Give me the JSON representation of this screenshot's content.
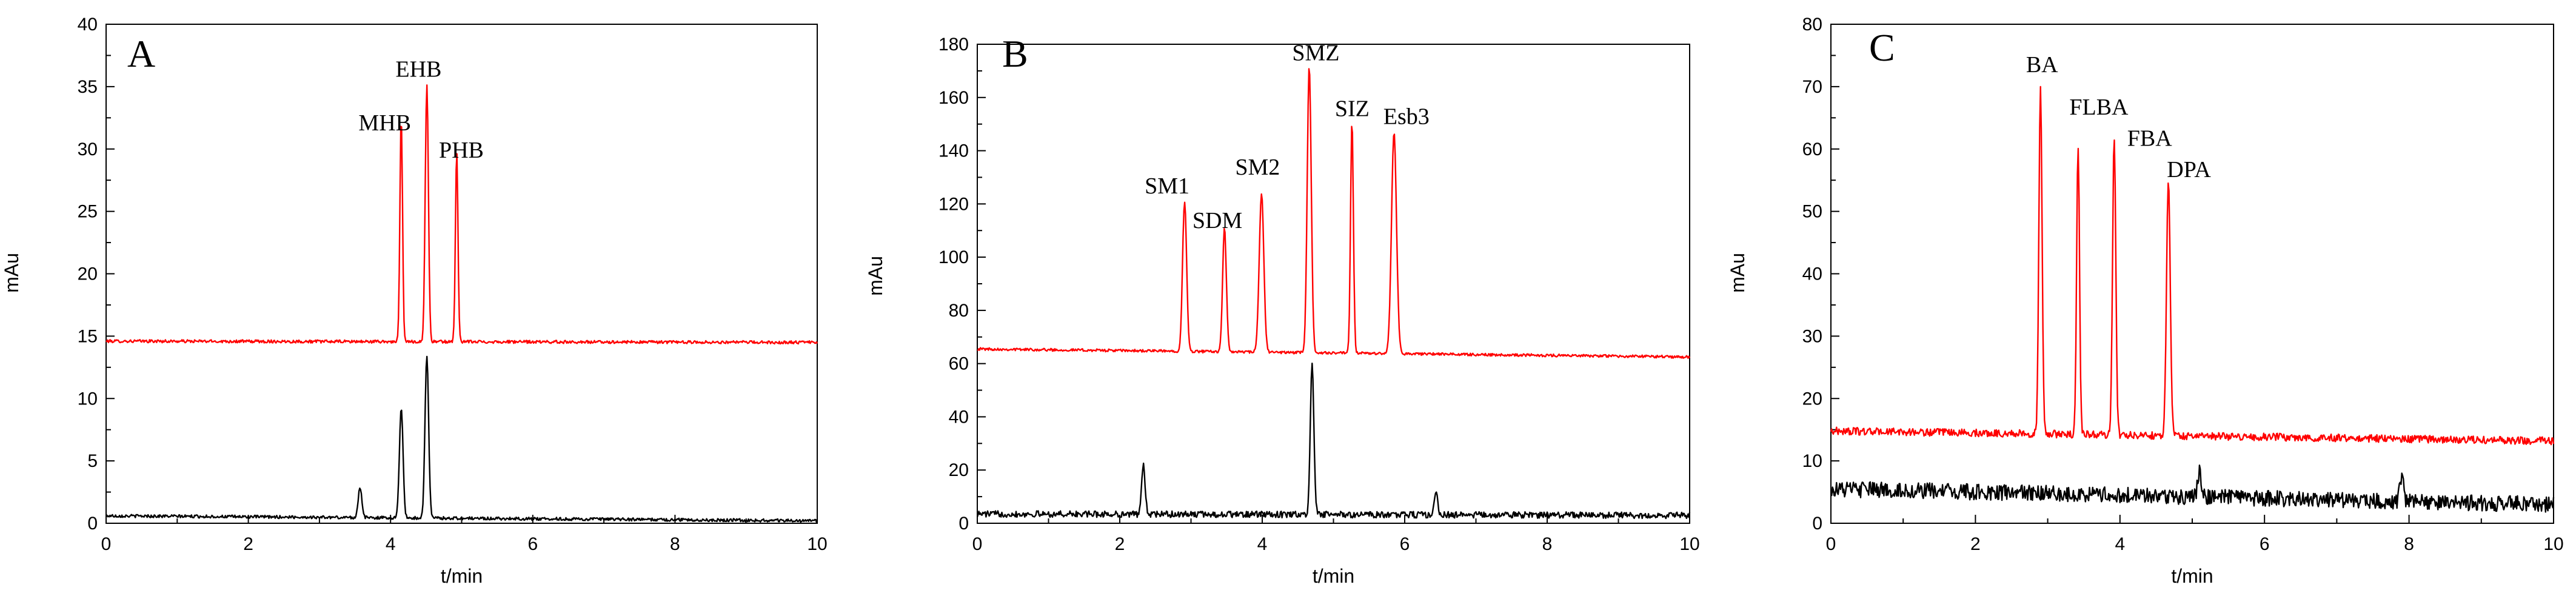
{
  "chart_data": [
    {
      "type": "line",
      "panel_label": "A",
      "xlabel": "t/min",
      "ylabel": "mAu",
      "xlim": [
        0,
        10
      ],
      "ylim": [
        0,
        40
      ],
      "x_ticks": [
        0,
        2,
        4,
        6,
        8,
        10
      ],
      "y_ticks": [
        0,
        5,
        10,
        15,
        20,
        25,
        30,
        35,
        40
      ],
      "series": [
        {
          "color": "#ff0000",
          "baseline": [
            14.6,
            14.5
          ],
          "noise": 0.12,
          "peaks": [
            {
              "x": 4.15,
              "y": 32.6
            },
            {
              "x": 4.51,
              "y": 35.2
            },
            {
              "x": 4.93,
              "y": 29.8
            }
          ]
        },
        {
          "color": "#000000",
          "baseline": [
            0.6,
            0.2
          ],
          "noise": 0.12,
          "peaks": [
            {
              "x": 3.57,
              "y": 2.9
            },
            {
              "x": 4.15,
              "y": 9.3
            },
            {
              "x": 4.51,
              "y": 13.5
            }
          ]
        }
      ],
      "annotations": [
        {
          "text": "MHB",
          "x": 3.55,
          "y": 31.5
        },
        {
          "text": "EHB",
          "x": 4.07,
          "y": 35.8
        },
        {
          "text": "PHB",
          "x": 4.68,
          "y": 29.3
        }
      ]
    },
    {
      "type": "line",
      "panel_label": "B",
      "xlabel": "t/min",
      "ylabel": "mAu",
      "xlim": [
        0,
        10
      ],
      "ylim": [
        0,
        180
      ],
      "x_ticks": [
        0,
        2,
        4,
        6,
        8,
        10
      ],
      "y_ticks": [
        0,
        20,
        40,
        60,
        80,
        100,
        120,
        140,
        160,
        180
      ],
      "series": [
        {
          "color": "#ff0000",
          "baseline": [
            65.5,
            62.5
          ],
          "noise": 0.5,
          "peaks": [
            {
              "x": 2.91,
              "y": 121
            },
            {
              "x": 3.47,
              "y": 111
            },
            {
              "x": 3.99,
              "y": 124
            },
            {
              "x": 4.66,
              "y": 172
            },
            {
              "x": 5.26,
              "y": 151
            },
            {
              "x": 5.85,
              "y": 147
            }
          ]
        },
        {
          "color": "#000000",
          "baseline": [
            3.5,
            3.0
          ],
          "noise": 1.2,
          "peaks": [
            {
              "x": 2.33,
              "y": 22
            },
            {
              "x": 4.7,
              "y": 59
            },
            {
              "x": 6.44,
              "y": 11
            }
          ]
        }
      ],
      "annotations": [
        {
          "text": "SM1",
          "x": 2.35,
          "y": 124
        },
        {
          "text": "SDM",
          "x": 3.02,
          "y": 111
        },
        {
          "text": "SM2",
          "x": 3.62,
          "y": 131
        },
        {
          "text": "SMZ",
          "x": 4.42,
          "y": 174
        },
        {
          "text": "SIZ",
          "x": 5.02,
          "y": 153
        },
        {
          "text": "Esb3",
          "x": 5.7,
          "y": 150
        }
      ]
    },
    {
      "type": "line",
      "panel_label": "C",
      "xlabel": "t/min",
      "ylabel": "mAu",
      "xlim": [
        0,
        10
      ],
      "ylim": [
        0,
        80
      ],
      "x_ticks": [
        0,
        2,
        4,
        6,
        8,
        10
      ],
      "y_ticks": [
        0,
        10,
        20,
        30,
        40,
        50,
        60,
        70,
        80
      ],
      "series": [
        {
          "color": "#ff0000",
          "baseline": [
            14.8,
            13.2
          ],
          "noise": 0.6,
          "peaks": [
            {
              "x": 2.9,
              "y": 69.6
            },
            {
              "x": 3.42,
              "y": 60.7
            },
            {
              "x": 3.92,
              "y": 62.2
            },
            {
              "x": 4.67,
              "y": 54.7
            }
          ]
        },
        {
          "color": "#000000",
          "baseline": [
            5.5,
            3.0
          ],
          "noise": 1.3,
          "peaks": [
            {
              "x": 5.1,
              "y": 8.5
            },
            {
              "x": 7.9,
              "y": 7.8
            }
          ]
        }
      ],
      "annotations": [
        {
          "text": "BA",
          "x": 2.7,
          "y": 72.3
        },
        {
          "text": "FLBA",
          "x": 3.3,
          "y": 65.5
        },
        {
          "text": "FBA",
          "x": 4.1,
          "y": 60.5
        },
        {
          "text": "DPA",
          "x": 4.65,
          "y": 55.5
        }
      ]
    }
  ]
}
